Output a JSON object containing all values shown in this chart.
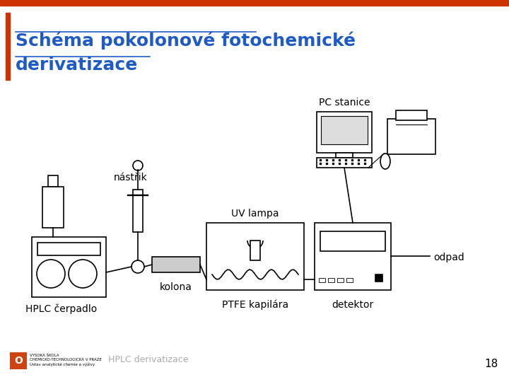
{
  "title_line1": "Schéma pokolonové fotochemické",
  "title_line2": "derivatizace",
  "title_color": "#1F5BC4",
  "bg_color": "#FFFFFF",
  "top_bar_color": "#CC3300",
  "left_bar_color": "#CC3300",
  "footer_text": "HPLC derivatizace",
  "page_number": "18",
  "labels": {
    "pc_stanice": "PC stanice",
    "nastrik": "nástřik",
    "uv_lampa": "UV lampa",
    "kolona": "kolona",
    "ptfe": "PTFE kapilára",
    "detektor": "detektor",
    "odpad": "odpad",
    "hplc": "HPLC čerpadlo"
  }
}
